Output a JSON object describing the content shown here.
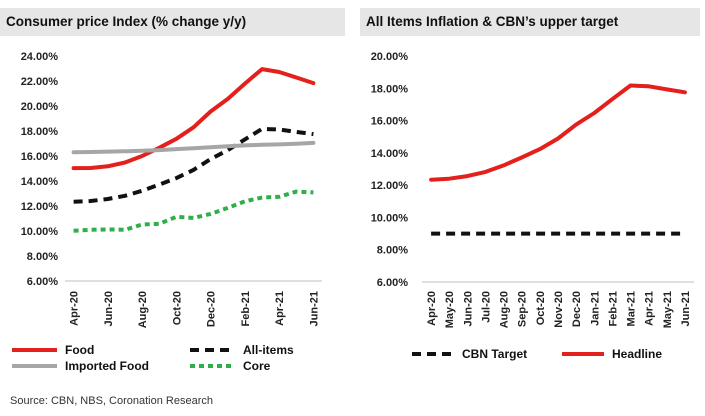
{
  "source": "Source: CBN, NBS, Coronation Research",
  "chart_data": [
    {
      "type": "line",
      "title": "Consumer price Index (% change y/y)",
      "x": [
        "Apr-20",
        "May-20",
        "Jun-20",
        "Jul-20",
        "Aug-20",
        "Sep-20",
        "Oct-20",
        "Nov-20",
        "Dec-20",
        "Jan-21",
        "Feb-21",
        "Mar-21",
        "Apr-21",
        "May-21",
        "Jun-21"
      ],
      "tick_labels": [
        "Apr-20",
        "Jun-20",
        "Aug-20",
        "Oct-20",
        "Dec-20",
        "Feb-21",
        "Apr-21",
        "Jun-21"
      ],
      "ylim": [
        6,
        24
      ],
      "yticks": [
        "6.00%",
        "8.00%",
        "10.00%",
        "12.00%",
        "14.00%",
        "16.00%",
        "18.00%",
        "20.00%",
        "22.00%",
        "24.00%"
      ],
      "legend": "bottom",
      "series": [
        {
          "name": "Food",
          "color": "#e3201b",
          "dash": "solid",
          "values": [
            15.03,
            15.04,
            15.18,
            15.48,
            16.0,
            16.66,
            17.38,
            18.3,
            19.56,
            20.57,
            21.79,
            22.95,
            22.72,
            22.28,
            21.83
          ]
        },
        {
          "name": "All-items",
          "color": "#111111",
          "dash": "dashed",
          "values": [
            12.34,
            12.4,
            12.56,
            12.82,
            13.22,
            13.71,
            14.23,
            14.89,
            15.75,
            16.47,
            17.33,
            18.17,
            18.12,
            17.93,
            17.75
          ]
        },
        {
          "name": "Imported Food",
          "color": "#a6a6a6",
          "dash": "solid",
          "values": [
            16.3,
            16.32,
            16.35,
            16.38,
            16.42,
            16.47,
            16.55,
            16.62,
            16.7,
            16.78,
            16.85,
            16.9,
            16.93,
            16.98,
            17.05
          ]
        },
        {
          "name": "Core",
          "color": "#2fae4a",
          "dash": "dotted",
          "values": [
            10.02,
            10.1,
            10.13,
            10.1,
            10.52,
            10.58,
            11.14,
            11.05,
            11.37,
            11.85,
            12.38,
            12.67,
            12.74,
            13.15,
            13.09
          ]
        }
      ]
    },
    {
      "type": "line",
      "title": "All Items Inflation & CBN’s upper target",
      "x": [
        "Apr-20",
        "May-20",
        "Jun-20",
        "Jul-20",
        "Aug-20",
        "Sep-20",
        "Oct-20",
        "Nov-20",
        "Dec-20",
        "Jan-21",
        "Feb-21",
        "Mar-21",
        "Apr-21",
        "May-21",
        "Jun-21"
      ],
      "ylim": [
        6,
        20
      ],
      "yticks": [
        "6.00%",
        "8.00%",
        "10.00%",
        "12.00%",
        "14.00%",
        "16.00%",
        "18.00%",
        "20.00%"
      ],
      "legend": "bottom",
      "series": [
        {
          "name": "CBN Target",
          "color": "#111111",
          "dash": "dashed",
          "values": [
            9,
            9,
            9,
            9,
            9,
            9,
            9,
            9,
            9,
            9,
            9,
            9,
            9,
            9,
            9
          ]
        },
        {
          "name": "Headline",
          "color": "#e3201b",
          "dash": "solid",
          "values": [
            12.34,
            12.4,
            12.56,
            12.82,
            13.22,
            13.71,
            14.23,
            14.89,
            15.75,
            16.47,
            17.33,
            18.17,
            18.12,
            17.93,
            17.75
          ]
        }
      ]
    }
  ]
}
